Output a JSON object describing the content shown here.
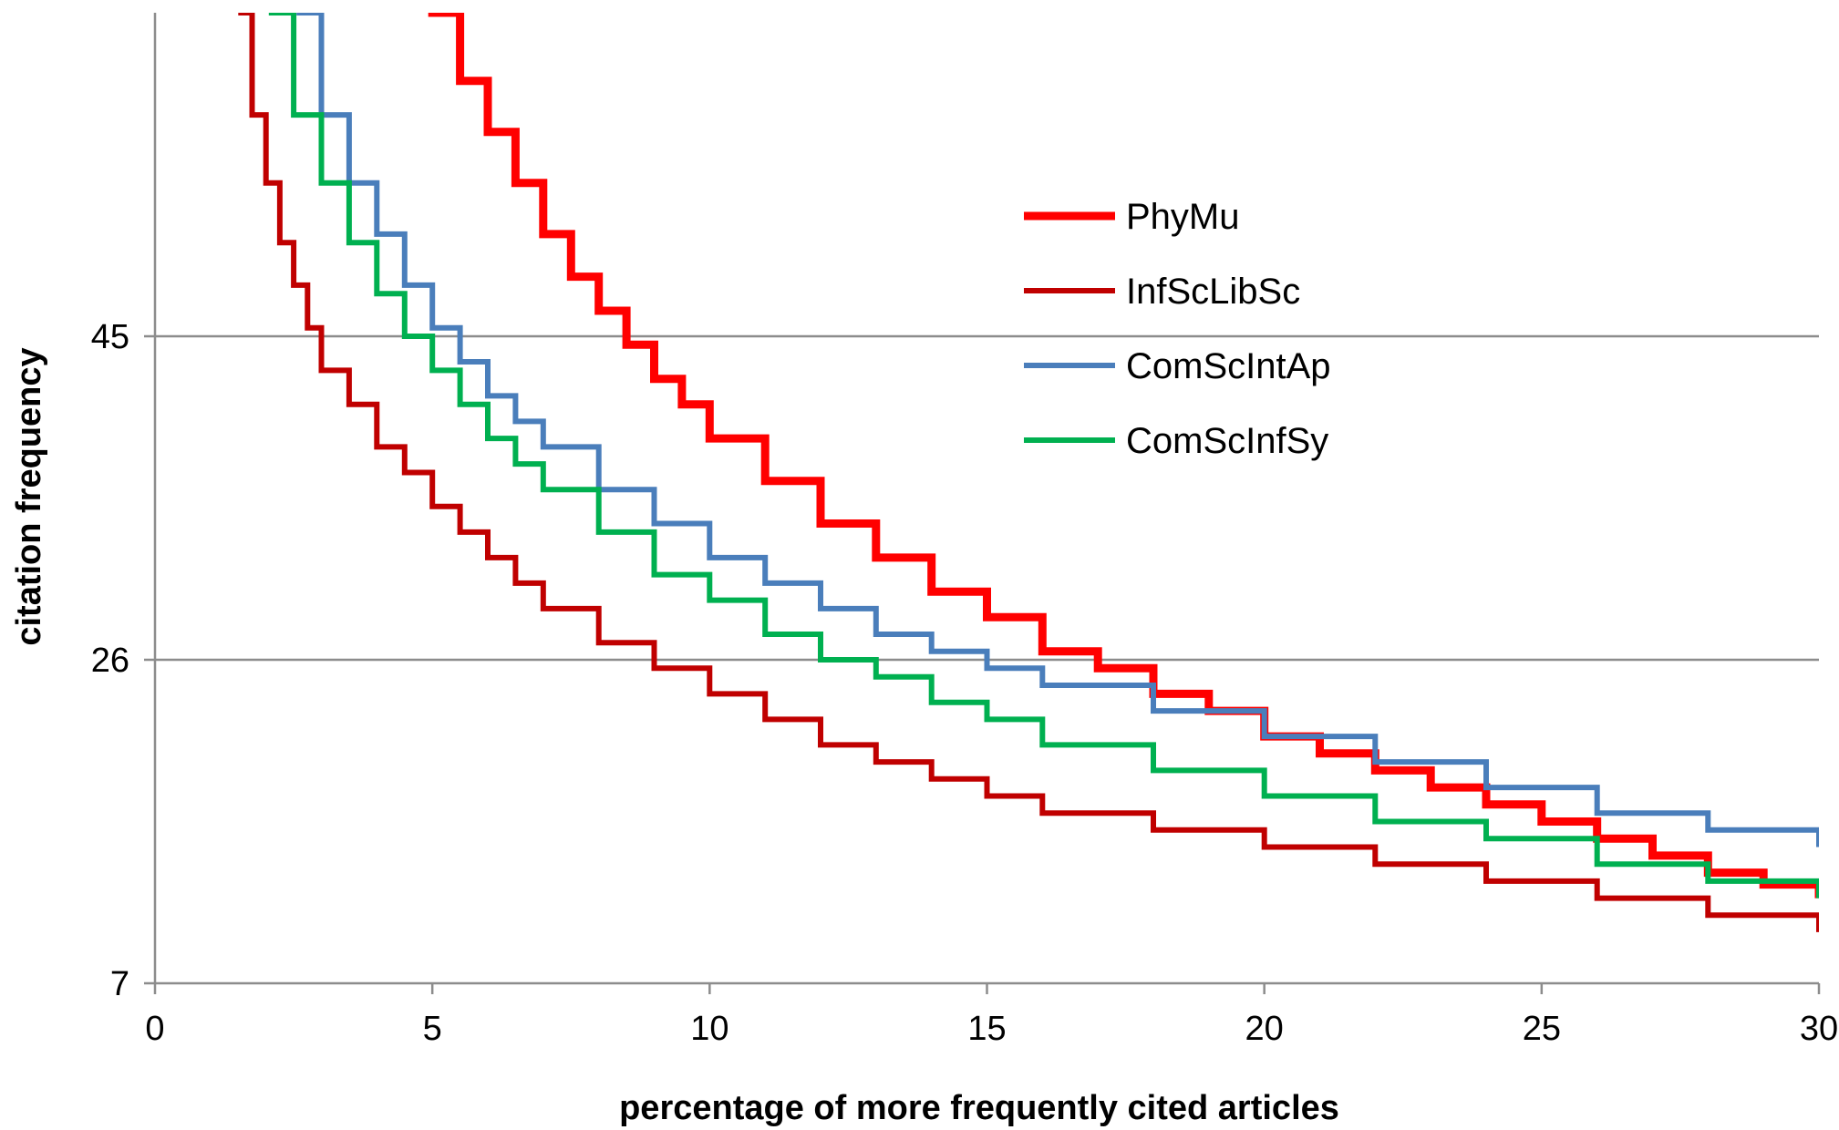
{
  "chart_data": {
    "type": "line",
    "title": "",
    "xlabel": "percentage of more frequently cited articles",
    "ylabel": "citation frequency",
    "xlim": [
      0,
      30
    ],
    "ylim": [
      7,
      64
    ],
    "x_ticks": [
      "0",
      "5",
      "10",
      "15",
      "20",
      "25",
      "30"
    ],
    "y_ticks": [
      "7",
      "26",
      "45"
    ],
    "y_tick_values": [
      7,
      26,
      45
    ],
    "grid": "horizontal",
    "legend_position": "upper-right",
    "step": true,
    "series": [
      {
        "name": "PhyMu",
        "color": "#ff0000",
        "x": [
          5.0,
          5.5,
          6.0,
          6.5,
          7.0,
          7.5,
          8.0,
          8.5,
          9.0,
          9.5,
          10.0,
          11.0,
          12.0,
          13.0,
          14.0,
          15.0,
          16.0,
          17.0,
          18.0,
          19.0,
          20.0,
          21.0,
          22.0,
          23.0,
          24.0,
          25.0,
          26.0,
          27.0,
          28.0,
          29.0,
          30.0
        ],
        "y": [
          64,
          60,
          57,
          54,
          51,
          48.5,
          46.5,
          44.5,
          42.5,
          41,
          39,
          36.5,
          34,
          32,
          30,
          28.5,
          26.5,
          25.5,
          24,
          23,
          21.5,
          20.5,
          19.5,
          18.5,
          17.5,
          16.5,
          15.5,
          14.5,
          13.5,
          12.8,
          12
        ]
      },
      {
        "name": "InfScLibSc",
        "color": "#c00000",
        "x": [
          1.55,
          1.75,
          2.0,
          2.25,
          2.5,
          2.75,
          3.0,
          3.5,
          4.0,
          4.5,
          5.0,
          5.5,
          6.0,
          6.5,
          7.0,
          8.0,
          9.0,
          10.0,
          11.0,
          12.0,
          13.0,
          14.0,
          15.0,
          16.0,
          18.0,
          20.0,
          22.0,
          24.0,
          26.0,
          28.0,
          30.0
        ],
        "y": [
          64,
          58,
          54,
          50.5,
          48,
          45.5,
          43,
          41,
          38.5,
          37,
          35,
          33.5,
          32,
          30.5,
          29,
          27,
          25.5,
          24,
          22.5,
          21,
          20,
          19,
          18,
          17,
          16,
          15,
          14,
          13,
          12,
          11,
          10
        ]
      },
      {
        "name": "ComScIntAp",
        "color": "#4a7ebb",
        "x": [
          2.6,
          3.0,
          3.5,
          4.0,
          4.5,
          5.0,
          5.5,
          6.0,
          6.5,
          7.0,
          8.0,
          9.0,
          10.0,
          11.0,
          12.0,
          13.0,
          14.0,
          15.0,
          16.0,
          18.0,
          20.0,
          22.0,
          24.0,
          26.0,
          28.0,
          30.0
        ],
        "y": [
          64,
          58,
          54,
          51,
          48,
          45.5,
          43.5,
          41.5,
          40,
          38.5,
          36,
          34,
          32,
          30.5,
          29,
          27.5,
          26.5,
          25.5,
          24.5,
          23,
          21.5,
          20,
          18.5,
          17,
          16,
          15
        ]
      },
      {
        "name": "ComScInfSy",
        "color": "#00b050",
        "x": [
          2.1,
          2.5,
          3.0,
          3.5,
          4.0,
          4.5,
          5.0,
          5.5,
          6.0,
          6.5,
          7.0,
          8.0,
          9.0,
          10.0,
          11.0,
          12.0,
          13.0,
          14.0,
          15.0,
          16.0,
          18.0,
          20.0,
          22.0,
          24.0,
          26.0,
          28.0,
          30.0
        ],
        "y": [
          64,
          58,
          54,
          50.5,
          47.5,
          45,
          43,
          41,
          39,
          37.5,
          36,
          33.5,
          31,
          29.5,
          27.5,
          26,
          25,
          23.5,
          22.5,
          21,
          19.5,
          18,
          16.5,
          15.5,
          14,
          13,
          12
        ]
      }
    ]
  }
}
